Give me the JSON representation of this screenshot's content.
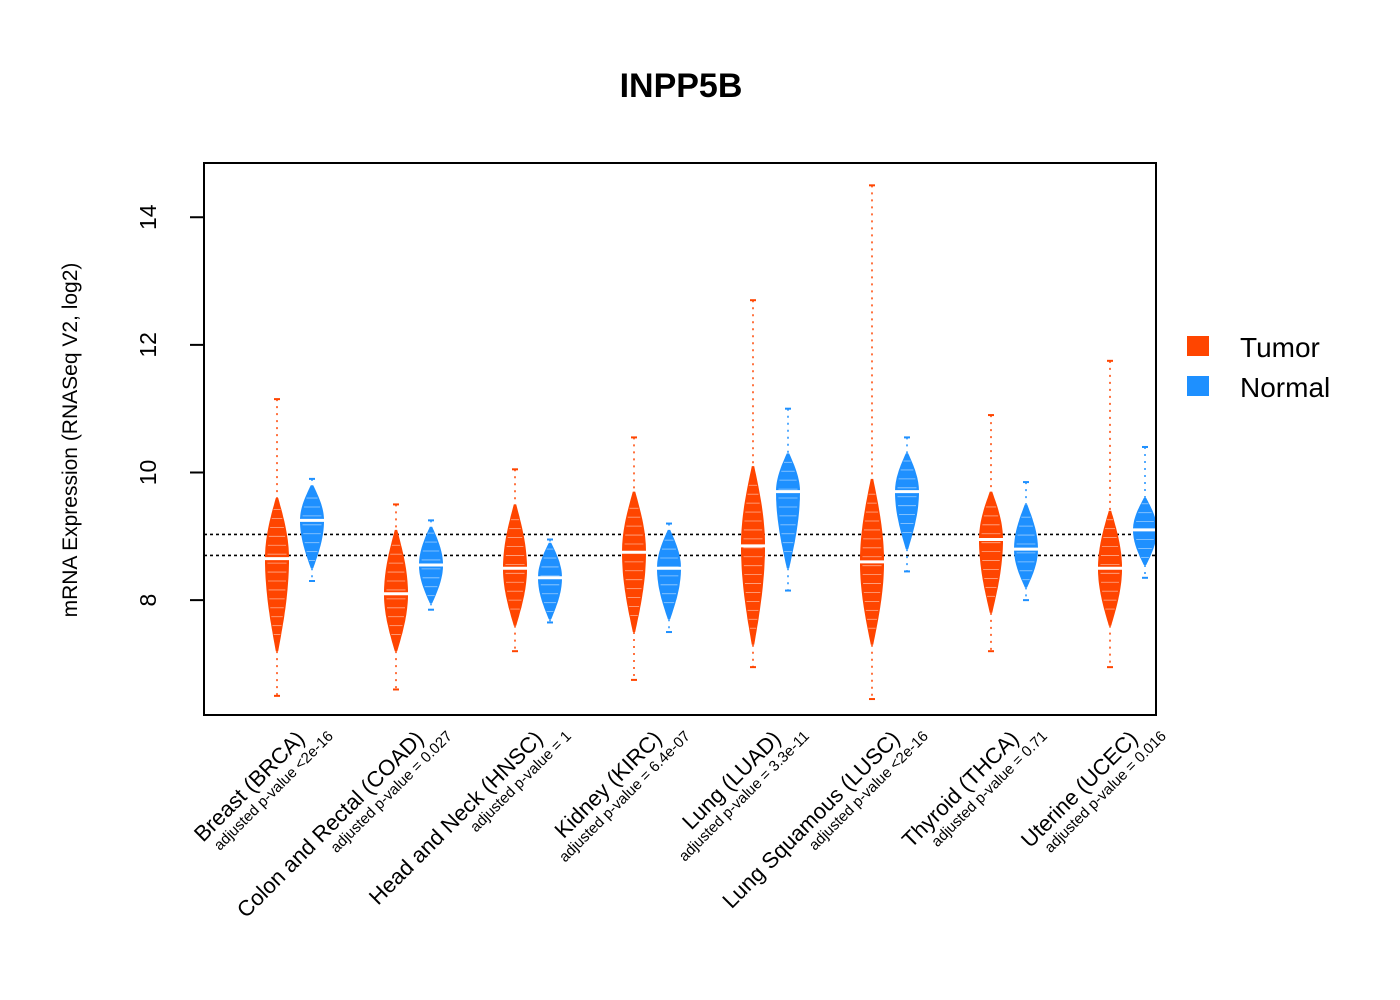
{
  "chart_data": {
    "type": "violin",
    "title": "INPP5B",
    "ylabel": "mRNA Expression (RNASeq V2, log2)",
    "xlabel": "",
    "ylim": [
      6.2,
      14.85
    ],
    "yticks": [
      8,
      10,
      12,
      14
    ],
    "reference_lines": [
      8.7,
      9.03
    ],
    "legend": {
      "placement": "right",
      "entries": [
        "Tumor",
        "Normal"
      ]
    },
    "colors": {
      "Tumor": "#ff4500",
      "Normal": "#1e90ff"
    },
    "categories": [
      "Breast (BRCA)",
      "Colon and Rectal (COAD)",
      "Head and Neck (HNSC)",
      "Kidney (KIRC)",
      "Lung (LUAD)",
      "Lung Squamous (LUSC)",
      "Thyroid (THCA)",
      "Uterine (UCEC)"
    ],
    "pvalue_labels": [
      "adjusted p-value <2e-16",
      "adjusted p-value = 0.027",
      "adjusted p-value = 1",
      "adjusted p-value = 6.4e-07",
      "adjusted p-value = 3.3e-11",
      "adjusted p-value <2e-16",
      "adjusted p-value = 0.71",
      "adjusted p-value = 0.016"
    ],
    "series": [
      {
        "name": "Tumor",
        "median": [
          8.65,
          8.1,
          8.5,
          8.75,
          8.85,
          8.6,
          8.95,
          8.5
        ],
        "min": [
          6.5,
          6.6,
          7.2,
          6.75,
          6.95,
          6.45,
          7.2,
          6.95
        ],
        "max": [
          11.15,
          9.5,
          10.05,
          10.55,
          12.7,
          14.5,
          10.9,
          11.75
        ],
        "core_low": [
          7.2,
          7.2,
          7.6,
          7.5,
          7.3,
          7.3,
          7.8,
          7.6
        ],
        "core_high": [
          9.6,
          9.1,
          9.5,
          9.7,
          10.1,
          9.9,
          9.7,
          9.4
        ]
      },
      {
        "name": "Normal",
        "median": [
          9.25,
          8.55,
          8.35,
          8.5,
          9.7,
          9.7,
          8.8,
          9.1
        ],
        "min": [
          8.3,
          7.85,
          7.65,
          7.5,
          8.15,
          8.45,
          8.0,
          8.35
        ],
        "max": [
          9.9,
          9.25,
          8.95,
          9.2,
          11.0,
          10.55,
          9.85,
          10.4
        ],
        "core_low": [
          8.5,
          7.95,
          7.7,
          7.7,
          8.5,
          8.8,
          8.2,
          8.55
        ],
        "core_high": [
          9.8,
          9.15,
          8.9,
          9.1,
          10.3,
          10.3,
          9.5,
          9.6
        ]
      }
    ]
  }
}
